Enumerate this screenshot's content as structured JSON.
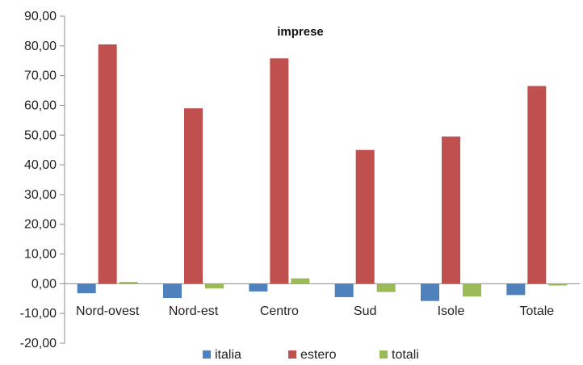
{
  "chart_data": {
    "type": "bar",
    "title": "imprese",
    "categories": [
      "Nord-ovest",
      "Nord-est",
      "Centro",
      "Sud",
      "Isole",
      "Totale"
    ],
    "series": [
      {
        "name": "italia",
        "color": "#4f81bd",
        "values": [
          -3.2,
          -4.8,
          -2.6,
          -4.5,
          -5.8,
          -3.8
        ]
      },
      {
        "name": "estero",
        "color": "#c0504d",
        "values": [
          80.5,
          59.0,
          75.8,
          45.0,
          49.5,
          66.5
        ]
      },
      {
        "name": "totali",
        "color": "#9bbb59",
        "values": [
          0.6,
          -1.6,
          1.8,
          -2.8,
          -4.3,
          -0.6
        ]
      }
    ],
    "ylim": [
      -20,
      90
    ],
    "yticks": [
      "-20,00",
      "-10,00",
      "0,00",
      "10,00",
      "20,00",
      "30,00",
      "40,00",
      "50,00",
      "60,00",
      "70,00",
      "80,00",
      "90,00"
    ],
    "legend_position": "bottom",
    "grid": false
  }
}
